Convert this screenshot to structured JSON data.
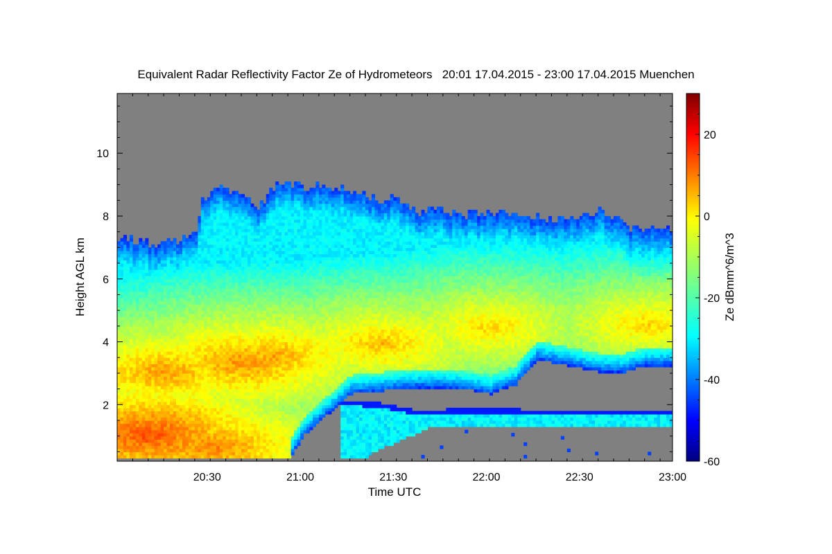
{
  "chart_data": {
    "type": "heatmap",
    "title": "Equivalent Radar Reflectivity Factor Ze of Hydrometeors   20:01 17.04.2015 - 23:00 17.04.2015 Muenchen",
    "xlabel": "Time UTC",
    "ylabel": "Height AGL km",
    "xlim": [
      "20:01",
      "23:00"
    ],
    "ylim": [
      0.2,
      11.9
    ],
    "x_ticks": [
      "20:30",
      "21:00",
      "21:30",
      "22:00",
      "22:30",
      "23:00"
    ],
    "x_tick_values_min": [
      29,
      59,
      89,
      119,
      149,
      179
    ],
    "y_ticks": [
      {
        "value": 2,
        "label": "2"
      },
      {
        "value": 4,
        "label": "4"
      },
      {
        "value": 6,
        "label": "6"
      },
      {
        "value": 8,
        "label": "8"
      },
      {
        "value": 10,
        "label": "10"
      }
    ],
    "colorbar": {
      "label": "Ze dBmm^6/m^3",
      "range": [
        -60,
        30
      ],
      "ticks": [
        {
          "value": 20,
          "label": "20"
        },
        {
          "value": 0,
          "label": "0"
        },
        {
          "value": -20,
          "label": "-20"
        },
        {
          "value": -40,
          "label": "-40"
        },
        {
          "value": -60,
          "label": "-60"
        }
      ]
    },
    "no_signal_color": "#808080",
    "features": {
      "cloud_top_km": [
        [
          0,
          7.3
        ],
        [
          10,
          7.1
        ],
        [
          20,
          7.2
        ],
        [
          25,
          7.5
        ],
        [
          27,
          8.5
        ],
        [
          33,
          8.9
        ],
        [
          40,
          8.6
        ],
        [
          45,
          8.3
        ],
        [
          52,
          9.0
        ],
        [
          60,
          8.9
        ],
        [
          70,
          8.9
        ],
        [
          80,
          8.6
        ],
        [
          85,
          8.4
        ],
        [
          90,
          8.6
        ],
        [
          96,
          8.0
        ],
        [
          100,
          8.2
        ],
        [
          110,
          8.0
        ],
        [
          120,
          8.0
        ],
        [
          130,
          8.0
        ],
        [
          140,
          7.8
        ],
        [
          155,
          8.1
        ],
        [
          165,
          7.6
        ],
        [
          179,
          7.5
        ]
      ],
      "cloud_base_km": [
        [
          0,
          0.2
        ],
        [
          55,
          0.2
        ],
        [
          60,
          1.0
        ],
        [
          68,
          1.7
        ],
        [
          75,
          2.3
        ],
        [
          85,
          2.4
        ],
        [
          95,
          2.5
        ],
        [
          105,
          2.5
        ],
        [
          115,
          2.4
        ],
        [
          120,
          2.3
        ],
        [
          128,
          2.6
        ],
        [
          135,
          3.4
        ],
        [
          145,
          3.2
        ],
        [
          155,
          3.0
        ],
        [
          163,
          3.0
        ],
        [
          170,
          3.2
        ],
        [
          179,
          3.2
        ]
      ],
      "lower_layer_top_km": [
        [
          72,
          2.1
        ],
        [
          85,
          2.0
        ],
        [
          95,
          1.8
        ],
        [
          105,
          1.8
        ],
        [
          115,
          1.85
        ],
        [
          130,
          1.8
        ],
        [
          150,
          1.8
        ],
        [
          179,
          1.8
        ]
      ],
      "lower_layer_base_km": [
        [
          78,
          0.2
        ],
        [
          86,
          0.6
        ],
        [
          100,
          1.2
        ],
        [
          115,
          1.2
        ],
        [
          130,
          1.2
        ],
        [
          150,
          1.2
        ],
        [
          179,
          1.2
        ]
      ],
      "core_dbz": [
        {
          "t": 15,
          "h": 3.0,
          "ze": 8
        },
        {
          "t": 40,
          "h": 3.3,
          "ze": 9
        },
        {
          "t": 50,
          "h": 3.5,
          "ze": 7
        },
        {
          "t": 85,
          "h": 3.9,
          "ze": 5
        },
        {
          "t": 120,
          "h": 4.4,
          "ze": 3
        },
        {
          "t": 170,
          "h": 4.5,
          "ze": 3
        },
        {
          "t": 10,
          "h": 1.0,
          "ze": 14
        },
        {
          "t": 30,
          "h": 0.6,
          "ze": 10
        }
      ]
    }
  }
}
